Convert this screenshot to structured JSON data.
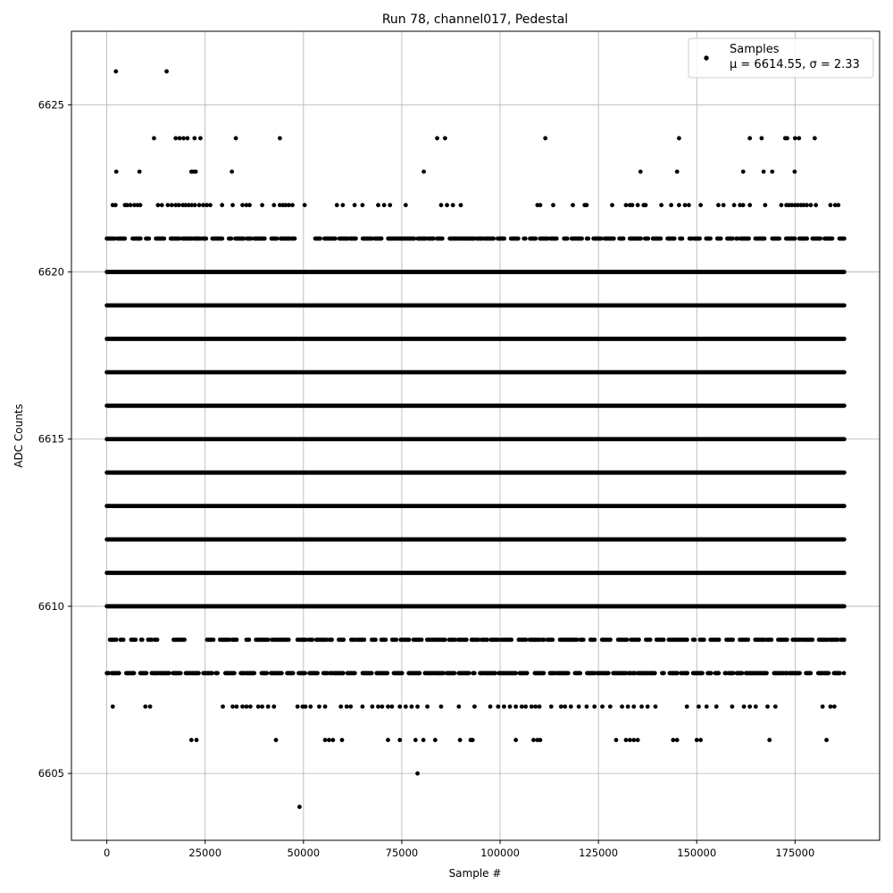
{
  "chart_data": {
    "type": "scatter",
    "title": "Run 78, channel017, Pedestal",
    "xlabel": "Sample #",
    "ylabel": "ADC Counts",
    "xlim": [
      -9000,
      196500
    ],
    "ylim": [
      6603,
      6627.2
    ],
    "xticks": [
      0,
      25000,
      50000,
      75000,
      100000,
      125000,
      150000,
      175000
    ],
    "xtick_labels": [
      "0",
      "25000",
      "50000",
      "75000",
      "100000",
      "125000",
      "150000",
      "175000"
    ],
    "yticks": [
      6605,
      6610,
      6615,
      6620,
      6625
    ],
    "ytick_labels": [
      "6605",
      "6610",
      "6615",
      "6620",
      "6625"
    ],
    "grid": true,
    "marker_color": "#000000",
    "legend": {
      "placement": "top-right",
      "series_label": "Samples",
      "stats_label": "μ = 6614.55, σ = 2.33"
    },
    "n_samples": 187500,
    "series": [
      {
        "name": "Samples",
        "solid_bands": [
          {
            "y": 6610,
            "x_start": 0,
            "x_end": 187500
          },
          {
            "y": 6611,
            "x_start": 0,
            "x_end": 187500
          },
          {
            "y": 6612,
            "x_start": 0,
            "x_end": 187500
          },
          {
            "y": 6613,
            "x_start": 0,
            "x_end": 187500
          },
          {
            "y": 6614,
            "x_start": 0,
            "x_end": 187500
          },
          {
            "y": 6615,
            "x_start": 0,
            "x_end": 187500
          },
          {
            "y": 6616,
            "x_start": 0,
            "x_end": 187500
          },
          {
            "y": 6617,
            "x_start": 0,
            "x_end": 187500
          },
          {
            "y": 6618,
            "x_start": 0,
            "x_end": 187500
          },
          {
            "y": 6619,
            "x_start": 0,
            "x_end": 187500
          },
          {
            "y": 6620,
            "x_start": 0,
            "x_end": 187500
          }
        ],
        "points": [
          {
            "y": 6626,
            "x": [
              2300,
              15200
            ]
          },
          {
            "y": 6624,
            "x": [
              12000,
              17500,
              18500,
              19500,
              20500,
              22300,
              23800,
              32800,
              44000,
              84000,
              86000,
              111500,
              145500,
              163500,
              166500,
              172500,
              173000,
              175000,
              176000,
              180000
            ]
          },
          {
            "y": 6623,
            "x": [
              2400,
              8300,
              21500,
              22000,
              22600,
              31800,
              80600,
              135700,
              145000,
              161800,
              167000,
              169200,
              174900
            ]
          },
          {
            "y": 6622,
            "x": [
              1500,
              2200,
              4600,
              5200,
              6000,
              7000,
              7800,
              8500,
              13000,
              14000,
              15500,
              16500,
              17500,
              18300,
              19300,
              20000,
              20800,
              21600,
              22400,
              23500,
              24500,
              25400,
              26300,
              29300,
              32000,
              34500,
              35500,
              36300,
              39500,
              42500,
              44000,
              44800,
              45500,
              46300,
              47200,
              50300,
              58500,
              60000,
              63000,
              65000,
              69000,
              70500,
              72000,
              76000,
              85000,
              86500,
              88000,
              90000,
              109500,
              110200,
              113500,
              118500,
              121500,
              122000,
              128500,
              132000,
              133000,
              133600,
              135000,
              136500,
              137000,
              141000,
              143500,
              145500,
              147000,
              148000,
              151000,
              155500,
              156800,
              159500,
              161000,
              161800,
              163500,
              167400,
              171500,
              172800,
              173500,
              174200,
              175000,
              175700,
              176500,
              177200,
              178000,
              179000,
              180300,
              184000,
              185200,
              186000
            ]
          },
          {
            "y": 6621,
            "dense_ranges": [
              [
                0,
                48000
              ],
              [
                53000,
                187500
              ]
            ]
          },
          {
            "y": 6609,
            "dense_ranges": [
              [
                800,
                2400
              ],
              [
                3500,
                4200
              ],
              [
                6200,
                9000
              ],
              [
                10500,
                13200
              ],
              [
                17000,
                20500
              ],
              [
                25500,
                33000
              ],
              [
                35500,
                41000
              ],
              [
                42000,
                46500
              ],
              [
                48500,
                187500
              ]
            ]
          },
          {
            "y": 6608,
            "dense_ranges": [
              [
                0,
                187500
              ]
            ]
          },
          {
            "y": 6607,
            "x": [
              1500,
              9800,
              11000,
              29500,
              32000,
              33000,
              34500,
              35500,
              36500,
              38500,
              39500,
              41000,
              42500,
              48500,
              49800,
              50500,
              51800,
              54000,
              55500,
              59500,
              61000,
              62000,
              65000,
              67500,
              69000,
              70000,
              71500,
              72500,
              74500,
              76000,
              77500,
              79000,
              81500,
              85000,
              89500,
              93500,
              97500,
              99500,
              101000,
              102500,
              104000,
              105500,
              106500,
              108000,
              109000,
              110000,
              113000,
              115500,
              116500,
              118000,
              120000,
              122000,
              124000,
              126000,
              128000,
              131000,
              132500,
              134000,
              136000,
              137500,
              139500,
              147500,
              150500,
              152500,
              155000,
              159000,
              162000,
              163500,
              165000,
              168000,
              170000,
              182000,
              184000,
              185000
            ]
          },
          {
            "y": 6606,
            "x": [
              21500,
              22800,
              43000,
              55500,
              56500,
              57500,
              59800,
              71500,
              74500,
              78500,
              80500,
              83500,
              89800,
              92500,
              93000,
              104000,
              108500,
              109500,
              110200,
              129500,
              132000,
              133000,
              134000,
              135000,
              144000,
              145000,
              150000,
              151000,
              168500,
              183000
            ]
          },
          {
            "y": 6605,
            "x": [
              79000
            ]
          },
          {
            "y": 6604,
            "x": [
              49000
            ]
          }
        ]
      }
    ]
  }
}
